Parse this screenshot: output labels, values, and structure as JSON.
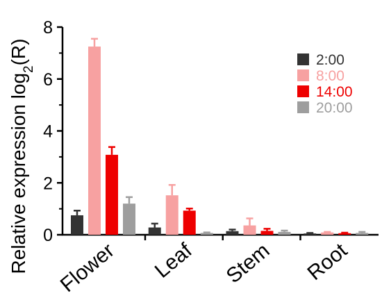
{
  "chart_data": {
    "type": "bar",
    "title": "",
    "xlabel": "",
    "ylabel": {
      "base": "Relative expression log",
      "subscript": "2",
      "suffix": "(R)"
    },
    "ylim": [
      0,
      8
    ],
    "yticks": [
      0,
      2,
      4,
      6,
      8
    ],
    "categories": [
      "Flower",
      "Leaf",
      "Stem",
      "Root"
    ],
    "legend_position": "top-right",
    "series": [
      {
        "name": "2:00",
        "color": "#333333",
        "values": [
          0.75,
          0.28,
          0.14,
          0.05
        ],
        "errors": [
          0.18,
          0.15,
          0.06,
          0.02
        ]
      },
      {
        "name": "8:00",
        "color": "#f7a1a1",
        "values": [
          7.25,
          1.52,
          0.36,
          0.09
        ],
        "errors": [
          0.3,
          0.4,
          0.27,
          0.02
        ]
      },
      {
        "name": "14:00",
        "color": "#ee0000",
        "values": [
          3.08,
          0.93,
          0.15,
          0.06
        ],
        "errors": [
          0.3,
          0.08,
          0.08,
          0.02
        ]
      },
      {
        "name": "20:00",
        "color": "#9e9e9e",
        "values": [
          1.2,
          0.07,
          0.11,
          0.07
        ],
        "errors": [
          0.25,
          0.02,
          0.05,
          0.04
        ]
      }
    ]
  }
}
